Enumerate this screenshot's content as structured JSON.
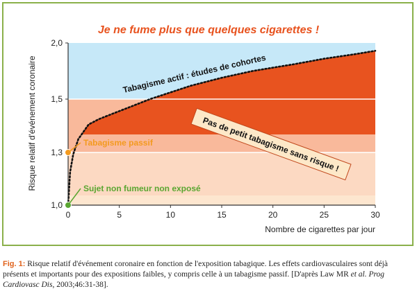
{
  "chart_data": {
    "type": "area",
    "title": "Je ne fume plus que quelques cigarettes !",
    "xlabel": "Nombre de cigarettes par jour",
    "ylabel": "Risque relatif d'événement coronaire",
    "x_ticks": [
      0,
      5,
      10,
      15,
      20,
      25,
      30
    ],
    "y_ticks": [
      1.0,
      1.3,
      1.5,
      2.0
    ],
    "y_tick_labels": [
      "1,0",
      "1,3",
      "1,5",
      "2,0"
    ],
    "xlim": [
      0,
      30
    ],
    "ylim": [
      1.0,
      2.0
    ],
    "y_scale": "custom",
    "series": [
      {
        "name": "Tabagisme actif : études de cohortes",
        "x": [
          0,
          0.2,
          0.5,
          1,
          2,
          3,
          4,
          5,
          6,
          8,
          10,
          12,
          15,
          18,
          20,
          22,
          25,
          28,
          30
        ],
        "y": [
          1.0,
          1.19,
          1.29,
          1.35,
          1.405,
          1.425,
          1.44,
          1.455,
          1.47,
          1.5,
          1.56,
          1.62,
          1.69,
          1.75,
          1.78,
          1.81,
          1.86,
          1.9,
          1.93
        ]
      }
    ],
    "bands": [
      {
        "from": 1.5,
        "to": 2.0,
        "color": "#c6e8f8"
      },
      {
        "from": 1.3,
        "to": 1.5,
        "color": "#f9b99b"
      },
      {
        "from": 1.0,
        "to": 1.3,
        "color": "#fcd9c2"
      }
    ],
    "curve_fill_color": "#e8531f",
    "grid": true,
    "points": [
      {
        "label": "Tabagisme passif",
        "x": 0,
        "y": 1.3,
        "color": "#f39a1f"
      },
      {
        "label": "Sujet non fumeur non exposé",
        "x": 0,
        "y": 1.0,
        "color": "#5aa631"
      }
    ],
    "annotations": [
      {
        "text": "Pas de petit tabagisme sans risque !",
        "x": 20,
        "y": 1.5
      }
    ],
    "colors": {
      "title": "#e8531f",
      "axis": "#333333",
      "gridline": "#ffffff",
      "frame": "#8ab04a"
    }
  },
  "caption": {
    "label": "Fig. 1:",
    "text1": " Risque relatif d'événement coronaire en fonction de l'exposition tabagique. Les effets cardiovasculaires sont déjà présents et importants pour des expositions faibles, y compris celle à un tabagisme passif. [D'après Law MR ",
    "etal": "et al.",
    "text2": " ",
    "journal": "Prog Cardiovasc Dis",
    "text3": ", 2003;46:31-38]."
  }
}
